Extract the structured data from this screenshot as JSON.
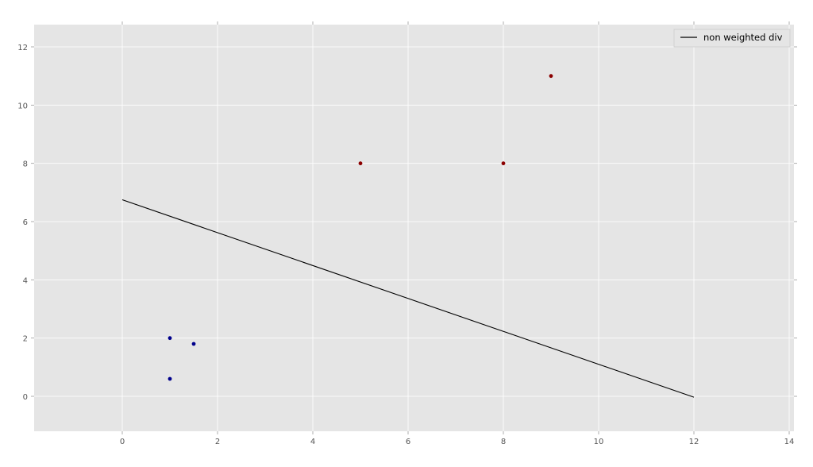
{
  "chart_data": {
    "type": "scatter",
    "title": "",
    "xlabel": "",
    "ylabel": "",
    "xlim": [
      -1.87,
      14.1
    ],
    "ylim": [
      -1.2,
      12.8
    ],
    "x_ticks": [
      "0",
      "2",
      "4",
      "6",
      "8",
      "10",
      "12",
      "14"
    ],
    "y_ticks": [
      "0",
      "2",
      "4",
      "6",
      "8",
      "10",
      "12"
    ],
    "grid": true,
    "legend_position": "top-right",
    "background_color": "#e5e5e5",
    "series": [
      {
        "kind": "points",
        "color": "#8b0000",
        "points": [
          [
            5,
            8
          ],
          [
            8,
            8
          ],
          [
            9,
            11
          ]
        ]
      },
      {
        "kind": "points",
        "color": "#00008b",
        "points": [
          [
            1,
            2
          ],
          [
            1.5,
            1.8
          ],
          [
            1,
            0.6
          ]
        ]
      },
      {
        "kind": "line",
        "name": "non weighted div",
        "color": "#000000",
        "points": [
          [
            0,
            6.75
          ],
          [
            12,
            -0.03
          ]
        ]
      }
    ]
  }
}
